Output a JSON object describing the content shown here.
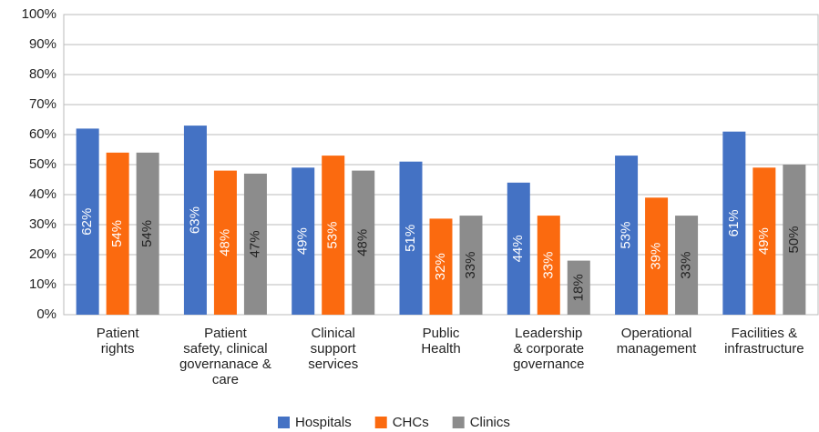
{
  "chart_data": {
    "type": "bar",
    "categories": [
      "Patient\nrights",
      "Patient\nsafety, clinical\ngovernanace &\ncare",
      "Clinical\nsupport\nservices",
      "Public\nHealth",
      "Leadership\n& corporate\ngovernance",
      "Operational\nmanagement",
      "Facilities &\ninfrastructure"
    ],
    "series": [
      {
        "name": "Hospitals",
        "color": "#4472c4",
        "label_color": "#ffffff",
        "values": [
          62,
          63,
          49,
          51,
          44,
          53,
          61
        ],
        "value_labels": [
          "62%",
          "63%",
          "49%",
          "51%",
          "44%",
          "53%",
          "61%"
        ]
      },
      {
        "name": "CHCs",
        "color": "#fb6a0f",
        "label_color": "#ffffff",
        "values": [
          54,
          48,
          53,
          32,
          33,
          39,
          49
        ],
        "value_labels": [
          "54%",
          "48%",
          "53%",
          "32%",
          "33%",
          "39%",
          "49%"
        ]
      },
      {
        "name": "Clinics",
        "color": "#8c8c8c",
        "label_color": "#222222",
        "values": [
          54,
          47,
          48,
          33,
          18,
          33,
          50
        ],
        "value_labels": [
          "54%",
          "47%",
          "48%",
          "33%",
          "18%",
          "33%",
          "50%"
        ]
      }
    ],
    "ylim": [
      0,
      100
    ],
    "yticks": [
      {
        "value": 0,
        "label": "0%"
      },
      {
        "value": 10,
        "label": "10%"
      },
      {
        "value": 20,
        "label": "20%"
      },
      {
        "value": 30,
        "label": "30%"
      },
      {
        "value": 40,
        "label": "40%"
      },
      {
        "value": 50,
        "label": "50%"
      },
      {
        "value": 60,
        "label": "60%"
      },
      {
        "value": 70,
        "label": "70%"
      },
      {
        "value": 80,
        "label": "80%"
      },
      {
        "value": 90,
        "label": "90%"
      },
      {
        "value": 100,
        "label": "100%"
      }
    ],
    "grid": true,
    "legend": "bottom"
  }
}
